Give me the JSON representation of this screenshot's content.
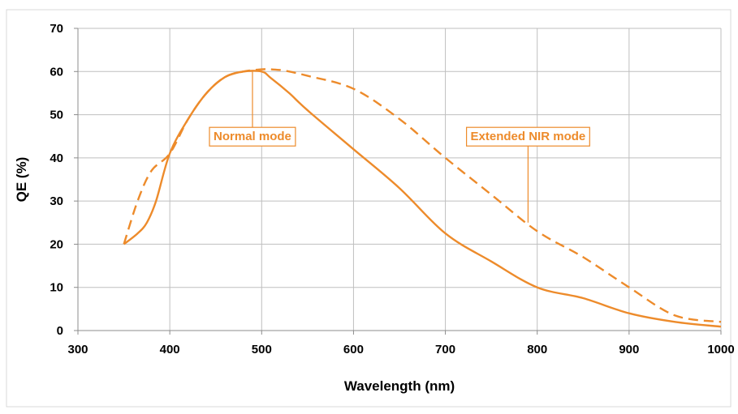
{
  "chart_data": {
    "type": "line",
    "title": "",
    "xlabel": "Wavelength (nm)",
    "ylabel": "QE (%)",
    "xlim": [
      300,
      1000
    ],
    "ylim": [
      0,
      70
    ],
    "x_ticks": [
      300,
      400,
      500,
      600,
      700,
      800,
      900,
      1000
    ],
    "y_ticks": [
      0,
      10,
      20,
      30,
      40,
      50,
      60,
      70
    ],
    "grid": true,
    "legend": "none",
    "colors": {
      "series": "#ed8b2b",
      "grid": "#bfbfbf",
      "axis": "#8c8c8c"
    },
    "series": [
      {
        "name": "Normal mode",
        "style": "solid",
        "x": [
          350,
          365,
          375,
          385,
          400,
          420,
          440,
          460,
          480,
          500,
          510,
          530,
          550,
          600,
          650,
          700,
          750,
          800,
          850,
          900,
          950,
          1000
        ],
        "y": [
          20,
          22.5,
          25,
          30,
          41,
          49,
          55,
          58.7,
          60,
          60,
          58.5,
          55,
          51,
          42,
          33,
          22.5,
          16,
          10,
          7.5,
          4,
          2,
          0.9
        ]
      },
      {
        "name": "Extended NIR mode",
        "style": "dashed",
        "x": [
          350,
          365,
          380,
          400,
          420,
          440,
          460,
          480,
          500,
          510,
          525,
          550,
          600,
          650,
          700,
          750,
          800,
          850,
          900,
          950,
          1000
        ],
        "y": [
          20,
          30,
          37,
          41,
          49,
          55,
          58.7,
          60,
          60.5,
          60.5,
          60.2,
          59,
          56,
          49,
          40,
          31.5,
          23,
          17,
          10,
          3.5,
          2
        ]
      }
    ],
    "annotations": [
      {
        "text": "Normal mode",
        "series": "Normal mode",
        "anchor": {
          "x": 490,
          "y": 60
        },
        "label_at": {
          "x": 490,
          "y": 45
        }
      },
      {
        "text": "Extended NIR mode",
        "series": "Extended NIR mode",
        "anchor": {
          "x": 790,
          "y": 25
        },
        "label_at": {
          "x": 790,
          "y": 45
        }
      }
    ]
  }
}
